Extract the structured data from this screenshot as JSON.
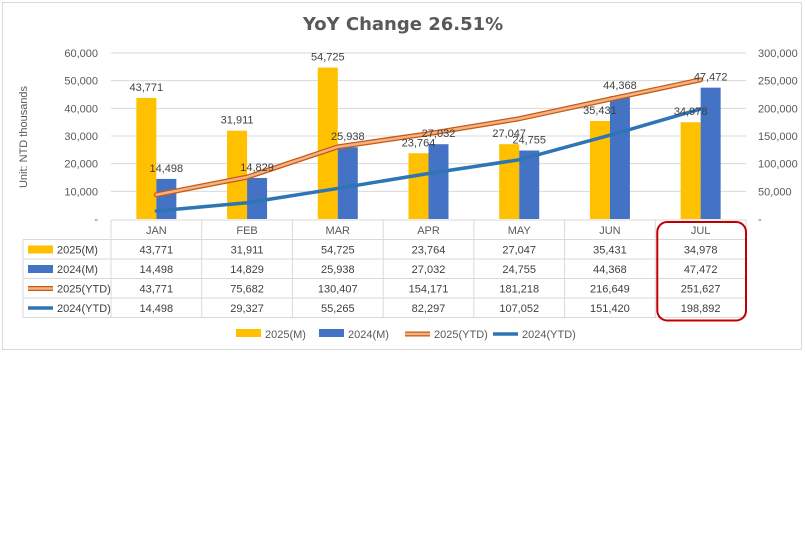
{
  "chart_data": {
    "type": "bar",
    "title": "YoY Change 26.51%",
    "ylabel": "Unit: NTD thousands",
    "categories": [
      "JAN",
      "FEB",
      "MAR",
      "APR",
      "MAY",
      "JUN",
      "JUL"
    ],
    "ylim": [
      0,
      60000
    ],
    "y2lim": [
      0,
      300000
    ],
    "yticks": [
      "-",
      "10,000",
      "20,000",
      "30,000",
      "40,000",
      "50,000",
      "60,000"
    ],
    "y2ticks": [
      "-",
      "50,000",
      "100,000",
      "150,000",
      "200,000",
      "250,000",
      "300,000"
    ],
    "series": [
      {
        "name": "2025(M)",
        "kind": "bar",
        "axis": "left",
        "color": "#FFC000",
        "values": [
          43771,
          31911,
          54725,
          23764,
          27047,
          35431,
          34978
        ],
        "labels": [
          "43,771",
          "31,911",
          "54,725",
          "23,764",
          "27,047",
          "35,431",
          "34,978"
        ]
      },
      {
        "name": "2024(M)",
        "kind": "bar",
        "axis": "left",
        "color": "#4472C4",
        "values": [
          14498,
          14829,
          25938,
          27032,
          24755,
          44368,
          47472
        ],
        "labels": [
          "14,498",
          "14,829",
          "25,938",
          "27,032",
          "24,755",
          "44,368",
          "47,472"
        ]
      },
      {
        "name": "2025(YTD)",
        "kind": "line",
        "axis": "right",
        "color": "#F4B183",
        "values": [
          43771,
          75682,
          130407,
          154171,
          181218,
          216649,
          251627
        ],
        "labels": [
          "43,771",
          "75,682",
          "130,407",
          "154,171",
          "181,218",
          "216,649",
          "251,627"
        ]
      },
      {
        "name": "2024(YTD)",
        "kind": "line",
        "axis": "right",
        "color": "#2E75B6",
        "values": [
          14498,
          29327,
          55265,
          82297,
          107052,
          151420,
          198892
        ],
        "labels": [
          "14,498",
          "29,327",
          "55,265",
          "82,297",
          "107,052",
          "151,420",
          "198,892"
        ]
      }
    ],
    "highlight_category": "JUL",
    "highlight_color": "#C00000",
    "legend_position": "bottom"
  }
}
